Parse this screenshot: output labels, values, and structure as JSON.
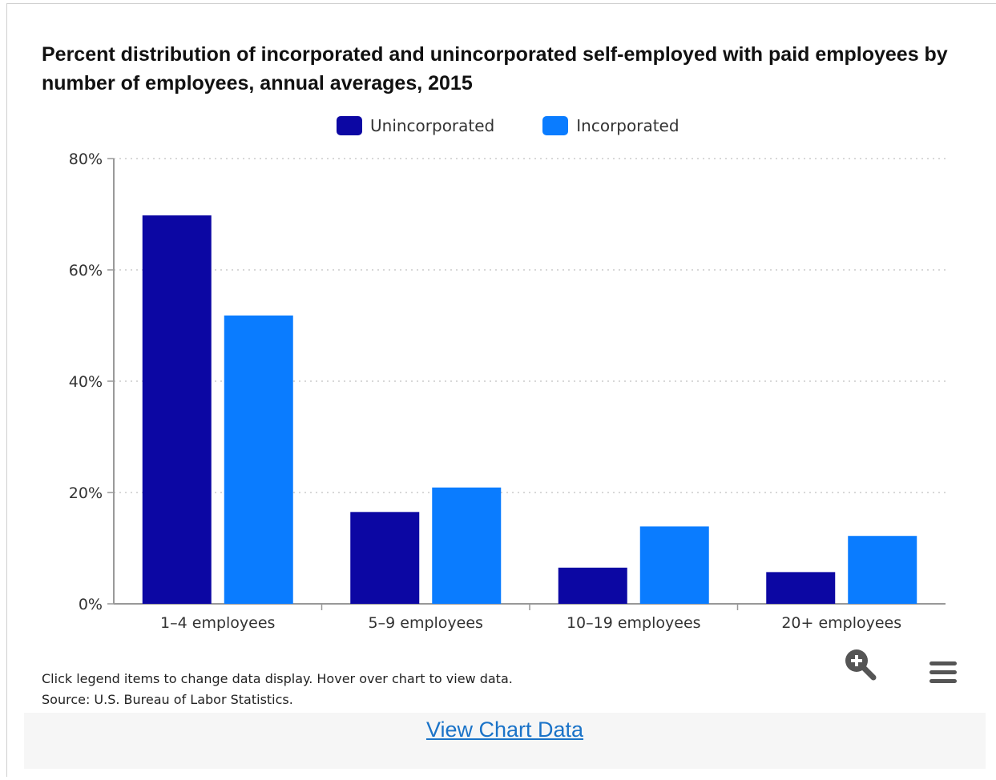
{
  "chart_data": {
    "type": "bar",
    "title": "Percent distribution of incorporated and unincorporated self-employed with paid employees by number of employees, annual averages, 2015",
    "categories": [
      "1–4 employees",
      "5–9 employees",
      "10–19 employees",
      "20+ employees"
    ],
    "series": [
      {
        "name": "Unincorporated",
        "color": "#0c07a3",
        "values": [
          69.8,
          16.5,
          6.5,
          5.7
        ]
      },
      {
        "name": "Incorporated",
        "color": "#0a7cff",
        "values": [
          51.8,
          20.9,
          13.9,
          12.2
        ]
      }
    ],
    "ylim": [
      0,
      80
    ],
    "yticks": [
      0,
      20,
      40,
      60,
      80
    ],
    "ytick_suffix": "%",
    "grid": true,
    "legend": "top-center"
  },
  "footnotes": {
    "instruction": "Click legend items to change data display. Hover over chart to view data.",
    "source": "Source: U.S. Bureau of Labor Statistics."
  },
  "controls": {
    "zoom_icon": "magnifier-plus-icon",
    "menu_icon": "hamburger-menu-icon"
  },
  "view_link": "View Chart Data"
}
